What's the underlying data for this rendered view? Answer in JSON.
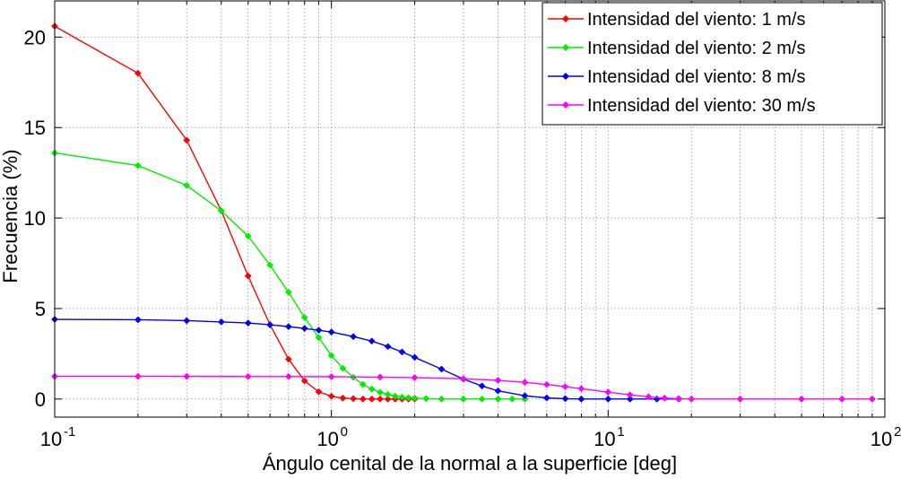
{
  "chart_data": {
    "type": "line",
    "title": "",
    "xlabel": "Ángulo cenital de la normal a la superficie [deg]",
    "ylabel": "Frecuencia (%)",
    "xscale": "log",
    "xlim": [
      0.1,
      100
    ],
    "ylim": [
      -1,
      22
    ],
    "grid": true,
    "legend_position": "top-right",
    "x_ticks": [
      {
        "base": "10",
        "exp": "-1",
        "value": 0.1
      },
      {
        "base": "10",
        "exp": "0",
        "value": 1
      },
      {
        "base": "10",
        "exp": "1",
        "value": 10
      },
      {
        "base": "10",
        "exp": "2",
        "value": 100
      }
    ],
    "y_ticks": [
      0,
      5,
      10,
      15,
      20
    ],
    "series": [
      {
        "name": "Intensidad del viento: 1 m/s",
        "color": "#ff0000",
        "points": [
          [
            0.1,
            20.6
          ],
          [
            0.2,
            18.0
          ],
          [
            0.3,
            14.3
          ],
          [
            0.4,
            10.4
          ],
          [
            0.5,
            6.8
          ],
          [
            0.6,
            4.1
          ],
          [
            0.7,
            2.2
          ],
          [
            0.8,
            1.0
          ],
          [
            0.9,
            0.4
          ],
          [
            1.0,
            0.15
          ],
          [
            1.1,
            0.05
          ],
          [
            1.2,
            0.02
          ],
          [
            1.3,
            0.0
          ],
          [
            1.4,
            0.0
          ],
          [
            1.5,
            0.0
          ],
          [
            1.6,
            0.0
          ],
          [
            1.7,
            0.0
          ],
          [
            1.8,
            0.0
          ],
          [
            1.9,
            0.0
          ],
          [
            2.0,
            0.0
          ]
        ]
      },
      {
        "name": "Intensidad del viento: 2 m/s",
        "color": "#00ee00",
        "points": [
          [
            0.1,
            13.6
          ],
          [
            0.2,
            12.9
          ],
          [
            0.3,
            11.8
          ],
          [
            0.4,
            10.4
          ],
          [
            0.5,
            9.0
          ],
          [
            0.6,
            7.4
          ],
          [
            0.7,
            5.9
          ],
          [
            0.8,
            4.5
          ],
          [
            0.9,
            3.4
          ],
          [
            1.0,
            2.4
          ],
          [
            1.1,
            1.7
          ],
          [
            1.2,
            1.2
          ],
          [
            1.3,
            0.8
          ],
          [
            1.4,
            0.55
          ],
          [
            1.5,
            0.37
          ],
          [
            1.6,
            0.25
          ],
          [
            1.7,
            0.16
          ],
          [
            1.8,
            0.1
          ],
          [
            1.9,
            0.07
          ],
          [
            2.0,
            0.05
          ],
          [
            2.2,
            0.02
          ],
          [
            2.5,
            0.0
          ],
          [
            3.0,
            0.0
          ],
          [
            3.5,
            0.0
          ],
          [
            4.0,
            0.0
          ],
          [
            4.5,
            0.0
          ],
          [
            5.0,
            0.0
          ]
        ]
      },
      {
        "name": "Intensidad del viento: 8 m/s",
        "color": "#0000ee",
        "points": [
          [
            0.1,
            4.4
          ],
          [
            0.2,
            4.38
          ],
          [
            0.3,
            4.33
          ],
          [
            0.4,
            4.26
          ],
          [
            0.5,
            4.2
          ],
          [
            0.6,
            4.1
          ],
          [
            0.7,
            4.0
          ],
          [
            0.8,
            3.9
          ],
          [
            0.9,
            3.8
          ],
          [
            1.0,
            3.7
          ],
          [
            1.2,
            3.45
          ],
          [
            1.4,
            3.2
          ],
          [
            1.6,
            2.9
          ],
          [
            1.8,
            2.6
          ],
          [
            2.0,
            2.3
          ],
          [
            2.5,
            1.65
          ],
          [
            3.0,
            1.1
          ],
          [
            3.5,
            0.72
          ],
          [
            4.0,
            0.45
          ],
          [
            5.0,
            0.18
          ],
          [
            6.0,
            0.06
          ],
          [
            7.0,
            0.02
          ],
          [
            8.0,
            0.0
          ],
          [
            10.0,
            0.0
          ],
          [
            12.0,
            0.0
          ],
          [
            15.0,
            0.0
          ],
          [
            18.0,
            0.0
          ]
        ]
      },
      {
        "name": "Intensidad del viento: 30 m/s",
        "color": "#ff00ff",
        "points": [
          [
            0.1,
            1.25
          ],
          [
            0.2,
            1.25
          ],
          [
            0.3,
            1.25
          ],
          [
            0.5,
            1.24
          ],
          [
            0.7,
            1.24
          ],
          [
            1.0,
            1.23
          ],
          [
            1.5,
            1.21
          ],
          [
            2.0,
            1.18
          ],
          [
            3.0,
            1.12
          ],
          [
            4.0,
            1.03
          ],
          [
            5.0,
            0.92
          ],
          [
            6.0,
            0.8
          ],
          [
            7.0,
            0.68
          ],
          [
            8.0,
            0.57
          ],
          [
            10.0,
            0.38
          ],
          [
            12.0,
            0.23
          ],
          [
            14.0,
            0.12
          ],
          [
            16.0,
            0.05
          ],
          [
            18.0,
            0.02
          ],
          [
            20.0,
            0.0
          ],
          [
            30.0,
            0.0
          ],
          [
            50.0,
            0.0
          ],
          [
            70.0,
            0.0
          ],
          [
            90.0,
            0.0
          ]
        ]
      }
    ]
  }
}
